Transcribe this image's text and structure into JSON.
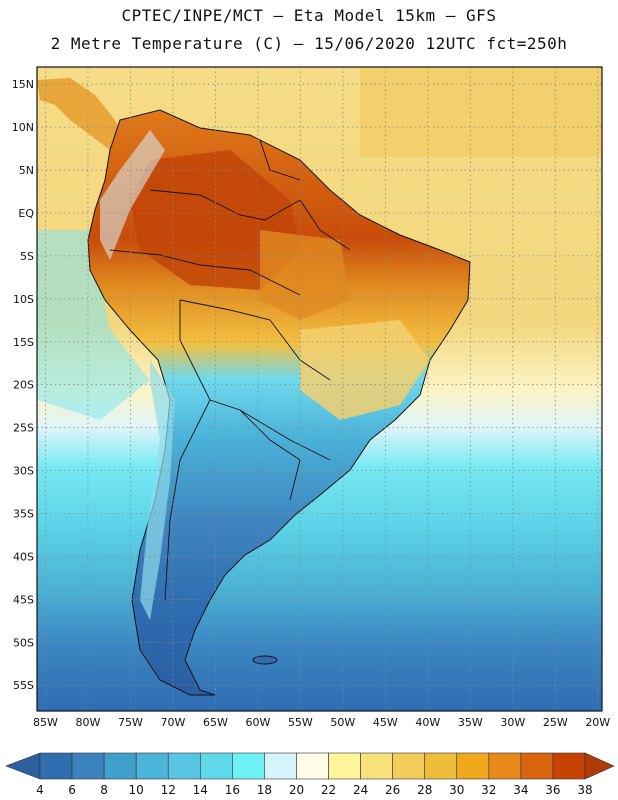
{
  "header": {
    "line1": "CPTEC/INPE/MCT –  Eta Model 15km – GFS",
    "line2": "2 Metre Temperature (C) – 15/06/2020 12UTC fct=250h"
  },
  "map": {
    "lon_range": [
      -86,
      -19.5
    ],
    "lat_range": [
      -58,
      17
    ],
    "lat_ticks": [
      {
        "value": 15,
        "label": "15N"
      },
      {
        "value": 10,
        "label": "10N"
      },
      {
        "value": 5,
        "label": "5N"
      },
      {
        "value": 0,
        "label": "EQ"
      },
      {
        "value": -5,
        "label": "5S"
      },
      {
        "value": -10,
        "label": "10S"
      },
      {
        "value": -15,
        "label": "15S"
      },
      {
        "value": -20,
        "label": "20S"
      },
      {
        "value": -25,
        "label": "25S"
      },
      {
        "value": -30,
        "label": "30S"
      },
      {
        "value": -35,
        "label": "35S"
      },
      {
        "value": -40,
        "label": "40S"
      },
      {
        "value": -45,
        "label": "45S"
      },
      {
        "value": -50,
        "label": "50S"
      },
      {
        "value": -55,
        "label": "55S"
      }
    ],
    "lon_ticks": [
      {
        "value": -85,
        "label": "85W"
      },
      {
        "value": -80,
        "label": "80W"
      },
      {
        "value": -75,
        "label": "75W"
      },
      {
        "value": -70,
        "label": "70W"
      },
      {
        "value": -65,
        "label": "65W"
      },
      {
        "value": -60,
        "label": "60W"
      },
      {
        "value": -55,
        "label": "55W"
      },
      {
        "value": -50,
        "label": "50W"
      },
      {
        "value": -45,
        "label": "45W"
      },
      {
        "value": -40,
        "label": "40W"
      },
      {
        "value": -35,
        "label": "35W"
      },
      {
        "value": -30,
        "label": "30W"
      },
      {
        "value": -25,
        "label": "25W"
      },
      {
        "value": -20,
        "label": "20W"
      }
    ]
  },
  "colorbar": {
    "labels": [
      "4",
      "6",
      "8",
      "10",
      "12",
      "14",
      "16",
      "18",
      "20",
      "22",
      "24",
      "26",
      "28",
      "30",
      "32",
      "34",
      "36",
      "38"
    ],
    "colors": [
      "#2f6fb0",
      "#3a82bd",
      "#40a0cc",
      "#4cb4d8",
      "#58c6e2",
      "#5fd9ea",
      "#6ef2f6",
      "#d4f3fb",
      "#fefbe6",
      "#fef59a",
      "#f8e07a",
      "#f3cd5a",
      "#eebd3a",
      "#f2a81c",
      "#e8891c",
      "#d9650f",
      "#c64305"
    ],
    "left_arrow_color": "#2a5fa0",
    "right_arrow_color": "#b03a08"
  }
}
